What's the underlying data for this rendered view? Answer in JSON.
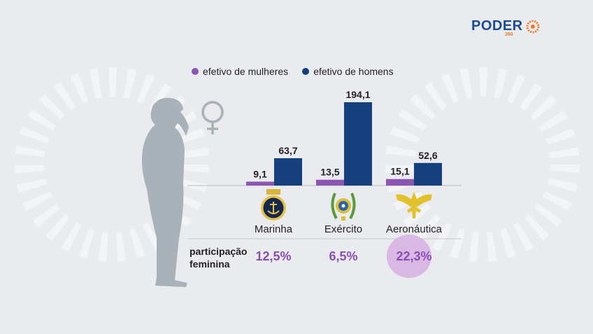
{
  "brand": {
    "name": "PODER",
    "sub": "360",
    "colors": {
      "blue": "#1b4a95",
      "orange": "#f07a2a"
    }
  },
  "colors": {
    "women": "#8b55b3",
    "men": "#153f7d",
    "highlight": "#d9b8e3",
    "baseline": "#a8a8a8"
  },
  "icons": [
    "woman-silhouette-icon",
    "female-symbol-icon",
    "marinha-emblem-icon",
    "exercito-emblem-icon",
    "aeronautica-emblem-icon"
  ],
  "participation": {
    "title_line1": "participação",
    "title_line2": "feminina",
    "values": [
      "12,5%",
      "6,5%",
      "22,3%"
    ],
    "highlighted_index": 2
  },
  "chart_data": {
    "type": "bar",
    "categories": [
      "Marinha",
      "Exército",
      "Aeronáutica"
    ],
    "series": [
      {
        "name": "efetivo de mulheres",
        "values": [
          9.1,
          13.5,
          15.1
        ],
        "labels": [
          "9,1",
          "13,5",
          "15,1"
        ],
        "color": "#8b55b3"
      },
      {
        "name": "efetivo de homens",
        "values": [
          63.7,
          194.1,
          52.6
        ],
        "labels": [
          "63,7",
          "194,1",
          "52,6"
        ],
        "color": "#153f7d"
      }
    ],
    "ylim": [
      0,
      194.1
    ],
    "legend": "top",
    "grid": false
  }
}
